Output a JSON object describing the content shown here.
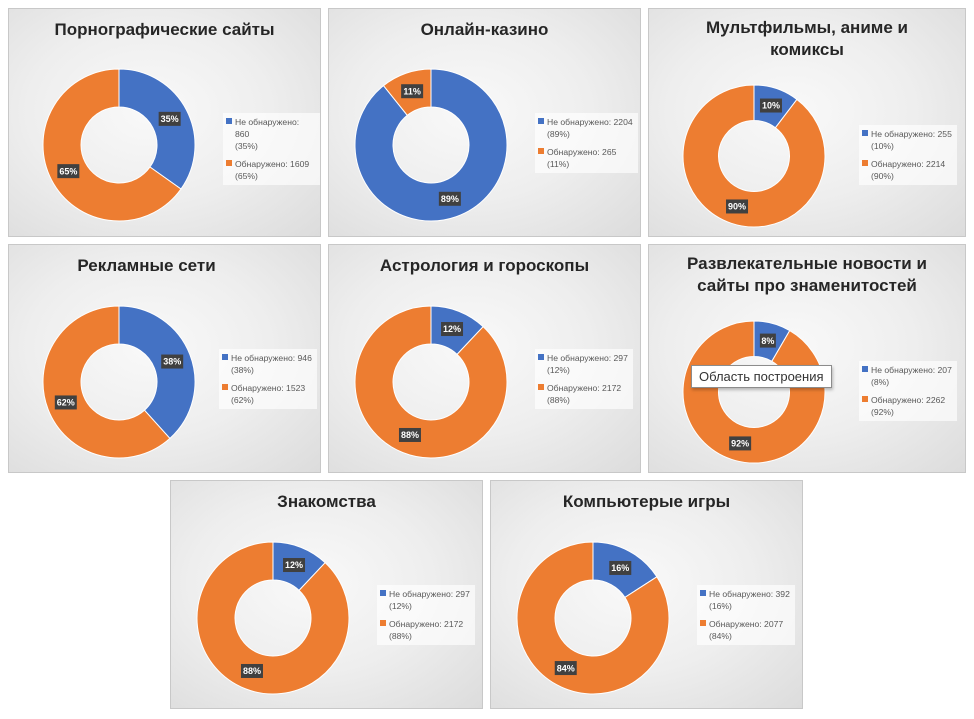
{
  "colors": {
    "not_detected": "#4472C4",
    "detected": "#ED7D31",
    "label_bg": "#404040"
  },
  "tooltip_text": "Область построения",
  "chart_data": [
    {
      "type": "pie",
      "subtype": "donut",
      "title": "Порнографические сайты",
      "series": [
        {
          "name": "Не обнаружено",
          "value": 860,
          "percent": 35,
          "legend_line1": "Не обнаружено: 860",
          "legend_line2": "(35%)",
          "label": "35%"
        },
        {
          "name": "Обнаружено",
          "value": 1609,
          "percent": 65,
          "legend_line1": "Обнаружено: 1609",
          "legend_line2": "(65%)",
          "label": "65%"
        }
      ],
      "legend_position": "right"
    },
    {
      "type": "pie",
      "subtype": "donut",
      "title": "Онлайн-казино",
      "series": [
        {
          "name": "Не обнаружено",
          "value": 2204,
          "percent": 89,
          "legend_line1": "Не обнаружено: 2204",
          "legend_line2": "(89%)",
          "label": "89%"
        },
        {
          "name": "Обнаружено",
          "value": 265,
          "percent": 11,
          "legend_line1": "Обнаружено: 265",
          "legend_line2": "(11%)",
          "label": "11%"
        }
      ],
      "legend_position": "right"
    },
    {
      "type": "pie",
      "subtype": "donut",
      "title": "Мультфильмы, аниме и комиксы",
      "series": [
        {
          "name": "Не обнаружено",
          "value": 255,
          "percent": 10,
          "legend_line1": "Не обнаружено: 255",
          "legend_line2": "(10%)",
          "label": "10%"
        },
        {
          "name": "Обнаружено",
          "value": 2214,
          "percent": 90,
          "legend_line1": "Обнаружено: 2214",
          "legend_line2": "(90%)",
          "label": "90%"
        }
      ],
      "legend_position": "right"
    },
    {
      "type": "pie",
      "subtype": "donut",
      "title": "Рекламные сети",
      "series": [
        {
          "name": "Не обнаружено",
          "value": 946,
          "percent": 38,
          "legend_line1": "Не обнаружено: 946",
          "legend_line2": "(38%)",
          "label": "38%"
        },
        {
          "name": "Обнаружено",
          "value": 1523,
          "percent": 62,
          "legend_line1": "Обнаружено: 1523",
          "legend_line2": "(62%)",
          "label": "62%"
        }
      ],
      "legend_position": "right"
    },
    {
      "type": "pie",
      "subtype": "donut",
      "title": "Астрология и гороскопы",
      "series": [
        {
          "name": "Не обнаружено",
          "value": 297,
          "percent": 12,
          "legend_line1": "Не обнаружено: 297",
          "legend_line2": "(12%)",
          "label": "12%"
        },
        {
          "name": "Обнаружено",
          "value": 2172,
          "percent": 88,
          "legend_line1": "Обнаружено: 2172",
          "legend_line2": "(88%)",
          "label": "88%"
        }
      ],
      "legend_position": "right"
    },
    {
      "type": "pie",
      "subtype": "donut",
      "title": "Развлекательные новости и сайты про знаменитостей",
      "series": [
        {
          "name": "Не обнаружено",
          "value": 207,
          "percent": 8,
          "legend_line1": "Не обнаружено: 207",
          "legend_line2": "(8%)",
          "label": "8%"
        },
        {
          "name": "Обнаружено",
          "value": 2262,
          "percent": 92,
          "legend_line1": "Обнаружено: 2262",
          "legend_line2": "(92%)",
          "label": "92%"
        }
      ],
      "legend_position": "right"
    },
    {
      "type": "pie",
      "subtype": "donut",
      "title": "Знакомства",
      "series": [
        {
          "name": "Не обнаружено",
          "value": 297,
          "percent": 12,
          "legend_line1": "Не обнаружено: 297",
          "legend_line2": "(12%)",
          "label": "12%"
        },
        {
          "name": "Обнаружено",
          "value": 2172,
          "percent": 88,
          "legend_line1": "Обнаружено: 2172",
          "legend_line2": "(88%)",
          "label": "88%"
        }
      ],
      "legend_position": "right"
    },
    {
      "type": "pie",
      "subtype": "donut",
      "title": "Компьютерые игры",
      "series": [
        {
          "name": "Не обнаружено",
          "value": 392,
          "percent": 16,
          "legend_line1": "Не обнаружено: 392",
          "legend_line2": "(16%)",
          "label": "16%"
        },
        {
          "name": "Обнаружено",
          "value": 2077,
          "percent": 84,
          "legend_line1": "Обнаружено: 2077",
          "legend_line2": "(84%)",
          "label": "84%"
        }
      ],
      "legend_position": "right"
    }
  ]
}
